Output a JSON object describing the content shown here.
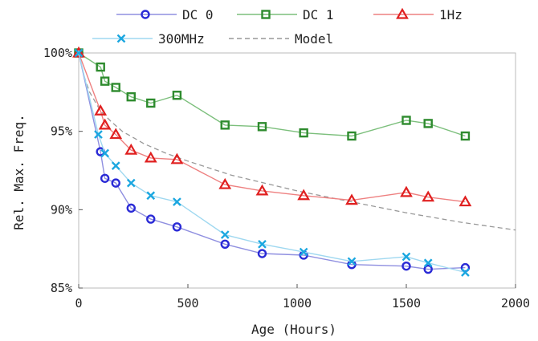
{
  "chart_data": {
    "type": "line",
    "xlabel": "Age (Hours)",
    "ylabel": "Rel. Max. Freq.",
    "xlim": [
      0,
      2000
    ],
    "ylim": [
      85,
      100
    ],
    "xticks": [
      0,
      500,
      1000,
      1500,
      2000
    ],
    "xtick_labels": [
      "0",
      "500",
      "1000",
      "1500",
      "2000"
    ],
    "yticks": [
      85,
      90,
      95,
      100
    ],
    "ytick_labels": [
      "85%",
      "90%",
      "95%",
      "100%"
    ],
    "legend_position": "top",
    "series": [
      {
        "name": "DC 0",
        "color": "#2a2ad6",
        "line_color": "#8f8fe0",
        "marker": "circle",
        "x": [
          0,
          100,
          120,
          170,
          240,
          330,
          450,
          670,
          840,
          1030,
          1250,
          1500,
          1600,
          1770
        ],
        "y": [
          100,
          93.7,
          92.0,
          91.7,
          90.1,
          89.4,
          88.9,
          87.8,
          87.2,
          87.1,
          86.5,
          86.4,
          86.2,
          86.3
        ]
      },
      {
        "name": "DC 1",
        "color": "#2e8b2e",
        "line_color": "#7cbf7c",
        "marker": "square",
        "x": [
          0,
          100,
          120,
          170,
          240,
          330,
          450,
          670,
          840,
          1030,
          1250,
          1500,
          1600,
          1770
        ],
        "y": [
          100,
          99.1,
          98.2,
          97.8,
          97.2,
          96.8,
          97.3,
          95.4,
          95.3,
          94.9,
          94.7,
          95.7,
          95.5,
          94.7
        ]
      },
      {
        "name": "1Hz",
        "color": "#e02020",
        "line_color": "#ee8080",
        "marker": "triangle",
        "x": [
          0,
          100,
          120,
          170,
          240,
          330,
          450,
          670,
          840,
          1030,
          1250,
          1500,
          1600,
          1770
        ],
        "y": [
          100,
          96.3,
          95.4,
          94.8,
          93.8,
          93.3,
          93.2,
          91.6,
          91.2,
          90.9,
          90.6,
          91.1,
          90.8,
          90.5
        ]
      },
      {
        "name": "300MHz",
        "color": "#1ba7e0",
        "line_color": "#9fd8f0",
        "marker": "x",
        "x": [
          0,
          90,
          120,
          170,
          240,
          330,
          450,
          670,
          840,
          1030,
          1250,
          1500,
          1600,
          1770
        ],
        "y": [
          100,
          94.8,
          93.6,
          92.8,
          91.7,
          90.9,
          90.5,
          88.4,
          87.8,
          87.3,
          86.7,
          87.0,
          86.6,
          86.0
        ]
      },
      {
        "name": "Model",
        "color": "#999999",
        "line_color": "#999999",
        "marker": "none",
        "dashed": true,
        "x": [
          0,
          25,
          50,
          100,
          150,
          200,
          300,
          400,
          500,
          700,
          1000,
          1250,
          1500,
          1750,
          2000
        ],
        "y": [
          100,
          98.5,
          97.5,
          96.3,
          95.6,
          95.0,
          94.2,
          93.6,
          93.1,
          92.2,
          91.2,
          90.5,
          89.8,
          89.2,
          88.7
        ]
      }
    ]
  }
}
